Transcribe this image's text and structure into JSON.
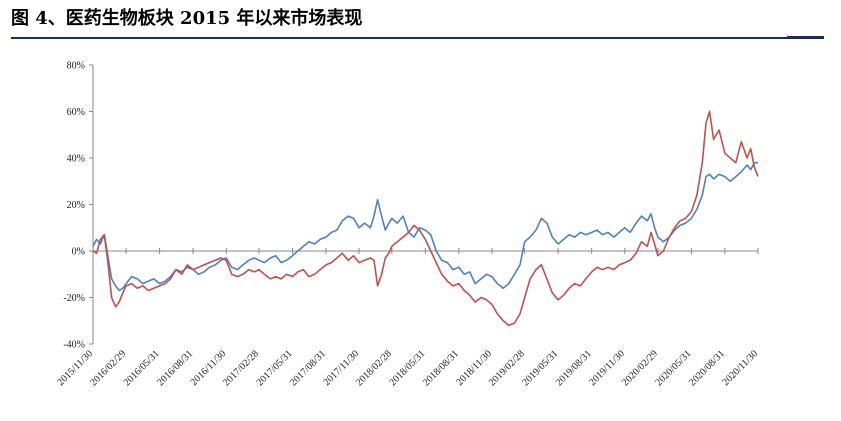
{
  "figure": {
    "title": "图 4、医药生物板块 2015 年以来市场表现"
  },
  "colors": {
    "series_blue": "#4f81bd",
    "series_red": "#c0504d",
    "axis": "#888888",
    "rule": "#1f2a60"
  },
  "chart_data": {
    "type": "line",
    "title": "",
    "xlabel": "",
    "ylabel": "",
    "ylim": [
      -40,
      80
    ],
    "y_unit": "%",
    "grid": false,
    "legend": "none",
    "y_ticks": [
      {
        "value": -40,
        "label": "-40%"
      },
      {
        "value": -20,
        "label": "-20%"
      },
      {
        "value": 0,
        "label": "0%"
      },
      {
        "value": 20,
        "label": "20%"
      },
      {
        "value": 40,
        "label": "40%"
      },
      {
        "value": 60,
        "label": "60%"
      },
      {
        "value": 80,
        "label": "80%"
      }
    ],
    "x_ticks": [
      {
        "date": "2015-11-30",
        "label": "2015/11/30"
      },
      {
        "date": "2016-02-29",
        "label": "2016/02/29"
      },
      {
        "date": "2016-05-31",
        "label": "2016/05/31"
      },
      {
        "date": "2016-08-31",
        "label": "2016/08/31"
      },
      {
        "date": "2016-11-30",
        "label": "2016/11/30"
      },
      {
        "date": "2017-02-28",
        "label": "2017/02/28"
      },
      {
        "date": "2017-05-31",
        "label": "2017/05/31"
      },
      {
        "date": "2017-08-31",
        "label": "2017/08/31"
      },
      {
        "date": "2017-11-30",
        "label": "2017/11/30"
      },
      {
        "date": "2018-02-28",
        "label": "2018/02/28"
      },
      {
        "date": "2018-05-31",
        "label": "2018/05/31"
      },
      {
        "date": "2018-08-31",
        "label": "2018/08/31"
      },
      {
        "date": "2018-11-30",
        "label": "2018/11/30"
      },
      {
        "date": "2019-02-28",
        "label": "2019/02/28"
      },
      {
        "date": "2019-05-31",
        "label": "2019/05/31"
      },
      {
        "date": "2019-08-31",
        "label": "2019/08/31"
      },
      {
        "date": "2019-11-30",
        "label": "2019/11/30"
      },
      {
        "date": "2020-02-29",
        "label": "2020/02/29"
      },
      {
        "date": "2020-05-31",
        "label": "2020/05/31"
      },
      {
        "date": "2020-08-31",
        "label": "2020/08/31"
      },
      {
        "date": "2020-11-30",
        "label": "2020/11/30"
      }
    ],
    "series": [
      {
        "color": "#4f81bd",
        "points": [
          [
            "2015-11-30",
            2
          ],
          [
            "2015-12-10",
            5
          ],
          [
            "2015-12-20",
            3
          ],
          [
            "2015-12-31",
            7
          ],
          [
            "2016-01-10",
            -2
          ],
          [
            "2016-01-20",
            -12
          ],
          [
            "2016-01-31",
            -15
          ],
          [
            "2016-02-10",
            -17
          ],
          [
            "2016-02-20",
            -16
          ],
          [
            "2016-02-29",
            -14
          ],
          [
            "2016-03-15",
            -11
          ],
          [
            "2016-03-31",
            -12
          ],
          [
            "2016-04-15",
            -14
          ],
          [
            "2016-04-30",
            -13
          ],
          [
            "2016-05-15",
            -12
          ],
          [
            "2016-05-31",
            -14
          ],
          [
            "2016-06-15",
            -13
          ],
          [
            "2016-06-30",
            -11
          ],
          [
            "2016-07-15",
            -8
          ],
          [
            "2016-07-31",
            -9
          ],
          [
            "2016-08-15",
            -7
          ],
          [
            "2016-08-31",
            -8
          ],
          [
            "2016-09-15",
            -10
          ],
          [
            "2016-09-30",
            -9
          ],
          [
            "2016-10-15",
            -7
          ],
          [
            "2016-10-31",
            -6
          ],
          [
            "2016-11-15",
            -4
          ],
          [
            "2016-11-30",
            -3
          ],
          [
            "2016-12-15",
            -7
          ],
          [
            "2016-12-31",
            -8
          ],
          [
            "2017-01-15",
            -6
          ],
          [
            "2017-01-31",
            -4
          ],
          [
            "2017-02-15",
            -3
          ],
          [
            "2017-02-28",
            -4
          ],
          [
            "2017-03-15",
            -5
          ],
          [
            "2017-03-31",
            -3
          ],
          [
            "2017-04-15",
            -2
          ],
          [
            "2017-04-30",
            -5
          ],
          [
            "2017-05-15",
            -4
          ],
          [
            "2017-05-31",
            -2
          ],
          [
            "2017-06-15",
            0
          ],
          [
            "2017-06-30",
            2
          ],
          [
            "2017-07-15",
            4
          ],
          [
            "2017-07-31",
            3
          ],
          [
            "2017-08-15",
            5
          ],
          [
            "2017-08-31",
            6
          ],
          [
            "2017-09-15",
            8
          ],
          [
            "2017-09-30",
            9
          ],
          [
            "2017-10-15",
            13
          ],
          [
            "2017-10-31",
            15
          ],
          [
            "2017-11-15",
            14
          ],
          [
            "2017-11-30",
            10
          ],
          [
            "2017-12-15",
            12
          ],
          [
            "2017-12-31",
            10
          ],
          [
            "2018-01-10",
            15
          ],
          [
            "2018-01-20",
            22
          ],
          [
            "2018-01-31",
            15
          ],
          [
            "2018-02-10",
            9
          ],
          [
            "2018-02-20",
            12
          ],
          [
            "2018-02-28",
            14
          ],
          [
            "2018-03-15",
            12
          ],
          [
            "2018-03-31",
            15
          ],
          [
            "2018-04-15",
            8
          ],
          [
            "2018-04-30",
            6
          ],
          [
            "2018-05-15",
            10
          ],
          [
            "2018-05-31",
            9
          ],
          [
            "2018-06-15",
            7
          ],
          [
            "2018-06-30",
            0
          ],
          [
            "2018-07-15",
            -4
          ],
          [
            "2018-07-31",
            -5
          ],
          [
            "2018-08-15",
            -8
          ],
          [
            "2018-08-31",
            -7
          ],
          [
            "2018-09-15",
            -10
          ],
          [
            "2018-09-30",
            -9
          ],
          [
            "2018-10-15",
            -14
          ],
          [
            "2018-10-31",
            -12
          ],
          [
            "2018-11-15",
            -10
          ],
          [
            "2018-11-30",
            -11
          ],
          [
            "2018-12-15",
            -14
          ],
          [
            "2018-12-31",
            -16
          ],
          [
            "2019-01-15",
            -14
          ],
          [
            "2019-01-31",
            -10
          ],
          [
            "2019-02-15",
            -6
          ],
          [
            "2019-02-28",
            4
          ],
          [
            "2019-03-15",
            6
          ],
          [
            "2019-03-31",
            9
          ],
          [
            "2019-04-15",
            14
          ],
          [
            "2019-04-30",
            12
          ],
          [
            "2019-05-15",
            6
          ],
          [
            "2019-05-31",
            3
          ],
          [
            "2019-06-15",
            5
          ],
          [
            "2019-06-30",
            7
          ],
          [
            "2019-07-15",
            6
          ],
          [
            "2019-07-31",
            8
          ],
          [
            "2019-08-15",
            7
          ],
          [
            "2019-08-31",
            8
          ],
          [
            "2019-09-15",
            9
          ],
          [
            "2019-09-30",
            7
          ],
          [
            "2019-10-15",
            8
          ],
          [
            "2019-10-31",
            6
          ],
          [
            "2019-11-15",
            8
          ],
          [
            "2019-11-30",
            10
          ],
          [
            "2019-12-15",
            8
          ],
          [
            "2019-12-31",
            12
          ],
          [
            "2020-01-15",
            15
          ],
          [
            "2020-01-31",
            13
          ],
          [
            "2020-02-10",
            16
          ],
          [
            "2020-02-20",
            10
          ],
          [
            "2020-02-29",
            6
          ],
          [
            "2020-03-15",
            4
          ],
          [
            "2020-03-31",
            6
          ],
          [
            "2020-04-15",
            9
          ],
          [
            "2020-04-30",
            11
          ],
          [
            "2020-05-15",
            12
          ],
          [
            "2020-05-31",
            14
          ],
          [
            "2020-06-15",
            18
          ],
          [
            "2020-06-30",
            24
          ],
          [
            "2020-07-10",
            32
          ],
          [
            "2020-07-20",
            33
          ],
          [
            "2020-07-31",
            31
          ],
          [
            "2020-08-15",
            33
          ],
          [
            "2020-08-31",
            32
          ],
          [
            "2020-09-15",
            30
          ],
          [
            "2020-09-30",
            32
          ],
          [
            "2020-10-15",
            34
          ],
          [
            "2020-10-31",
            37
          ],
          [
            "2020-11-10",
            35
          ],
          [
            "2020-11-20",
            38
          ],
          [
            "2020-11-30",
            38
          ]
        ]
      },
      {
        "color": "#c0504d",
        "points": [
          [
            "2015-11-30",
            0
          ],
          [
            "2015-12-10",
            -1
          ],
          [
            "2015-12-20",
            5
          ],
          [
            "2015-12-31",
            7
          ],
          [
            "2016-01-10",
            -5
          ],
          [
            "2016-01-20",
            -20
          ],
          [
            "2016-01-31",
            -24
          ],
          [
            "2016-02-10",
            -22
          ],
          [
            "2016-02-20",
            -18
          ],
          [
            "2016-02-29",
            -15
          ],
          [
            "2016-03-15",
            -14
          ],
          [
            "2016-03-31",
            -16
          ],
          [
            "2016-04-15",
            -15
          ],
          [
            "2016-04-30",
            -17
          ],
          [
            "2016-05-15",
            -16
          ],
          [
            "2016-05-31",
            -15
          ],
          [
            "2016-06-15",
            -14
          ],
          [
            "2016-06-30",
            -12
          ],
          [
            "2016-07-15",
            -8
          ],
          [
            "2016-07-31",
            -10
          ],
          [
            "2016-08-15",
            -6
          ],
          [
            "2016-08-31",
            -8
          ],
          [
            "2016-09-15",
            -7
          ],
          [
            "2016-09-30",
            -6
          ],
          [
            "2016-10-15",
            -5
          ],
          [
            "2016-10-31",
            -4
          ],
          [
            "2016-11-15",
            -3
          ],
          [
            "2016-11-30",
            -4
          ],
          [
            "2016-12-15",
            -10
          ],
          [
            "2016-12-31",
            -11
          ],
          [
            "2017-01-15",
            -10
          ],
          [
            "2017-01-31",
            -8
          ],
          [
            "2017-02-15",
            -9
          ],
          [
            "2017-02-28",
            -8
          ],
          [
            "2017-03-15",
            -10
          ],
          [
            "2017-03-31",
            -12
          ],
          [
            "2017-04-15",
            -11
          ],
          [
            "2017-04-30",
            -12
          ],
          [
            "2017-05-15",
            -10
          ],
          [
            "2017-05-31",
            -11
          ],
          [
            "2017-06-15",
            -9
          ],
          [
            "2017-06-30",
            -8
          ],
          [
            "2017-07-15",
            -11
          ],
          [
            "2017-07-31",
            -10
          ],
          [
            "2017-08-15",
            -8
          ],
          [
            "2017-08-31",
            -6
          ],
          [
            "2017-09-15",
            -5
          ],
          [
            "2017-09-30",
            -3
          ],
          [
            "2017-10-15",
            -1
          ],
          [
            "2017-10-31",
            -4
          ],
          [
            "2017-11-15",
            -2
          ],
          [
            "2017-11-30",
            -5
          ],
          [
            "2017-12-15",
            -4
          ],
          [
            "2017-12-31",
            -3
          ],
          [
            "2018-01-10",
            -4
          ],
          [
            "2018-01-20",
            -15
          ],
          [
            "2018-01-31",
            -10
          ],
          [
            "2018-02-10",
            -3
          ],
          [
            "2018-02-20",
            -1
          ],
          [
            "2018-02-28",
            2
          ],
          [
            "2018-03-15",
            4
          ],
          [
            "2018-03-31",
            6
          ],
          [
            "2018-04-15",
            8
          ],
          [
            "2018-04-30",
            11
          ],
          [
            "2018-05-15",
            9
          ],
          [
            "2018-05-31",
            5
          ],
          [
            "2018-06-15",
            0
          ],
          [
            "2018-06-30",
            -5
          ],
          [
            "2018-07-15",
            -10
          ],
          [
            "2018-07-31",
            -13
          ],
          [
            "2018-08-15",
            -15
          ],
          [
            "2018-08-31",
            -14
          ],
          [
            "2018-09-15",
            -17
          ],
          [
            "2018-09-30",
            -19
          ],
          [
            "2018-10-15",
            -22
          ],
          [
            "2018-10-31",
            -20
          ],
          [
            "2018-11-15",
            -21
          ],
          [
            "2018-11-30",
            -23
          ],
          [
            "2018-12-15",
            -27
          ],
          [
            "2018-12-31",
            -30
          ],
          [
            "2019-01-15",
            -32
          ],
          [
            "2019-01-31",
            -31
          ],
          [
            "2019-02-15",
            -27
          ],
          [
            "2019-02-28",
            -20
          ],
          [
            "2019-03-15",
            -12
          ],
          [
            "2019-03-31",
            -8
          ],
          [
            "2019-04-15",
            -6
          ],
          [
            "2019-04-30",
            -12
          ],
          [
            "2019-05-15",
            -18
          ],
          [
            "2019-05-31",
            -21
          ],
          [
            "2019-06-15",
            -19
          ],
          [
            "2019-06-30",
            -16
          ],
          [
            "2019-07-15",
            -14
          ],
          [
            "2019-07-31",
            -15
          ],
          [
            "2019-08-15",
            -12
          ],
          [
            "2019-08-31",
            -9
          ],
          [
            "2019-09-15",
            -7
          ],
          [
            "2019-09-30",
            -8
          ],
          [
            "2019-10-15",
            -7
          ],
          [
            "2019-10-31",
            -8
          ],
          [
            "2019-11-15",
            -6
          ],
          [
            "2019-11-30",
            -5
          ],
          [
            "2019-12-15",
            -4
          ],
          [
            "2019-12-31",
            -1
          ],
          [
            "2020-01-15",
            4
          ],
          [
            "2020-01-31",
            2
          ],
          [
            "2020-02-10",
            8
          ],
          [
            "2020-02-20",
            3
          ],
          [
            "2020-02-29",
            -2
          ],
          [
            "2020-03-15",
            0
          ],
          [
            "2020-03-31",
            6
          ],
          [
            "2020-04-15",
            10
          ],
          [
            "2020-04-30",
            13
          ],
          [
            "2020-05-15",
            14
          ],
          [
            "2020-05-31",
            17
          ],
          [
            "2020-06-15",
            24
          ],
          [
            "2020-06-30",
            38
          ],
          [
            "2020-07-10",
            55
          ],
          [
            "2020-07-20",
            60
          ],
          [
            "2020-07-31",
            48
          ],
          [
            "2020-08-15",
            52
          ],
          [
            "2020-08-31",
            42
          ],
          [
            "2020-09-15",
            40
          ],
          [
            "2020-09-30",
            38
          ],
          [
            "2020-10-15",
            47
          ],
          [
            "2020-10-31",
            40
          ],
          [
            "2020-11-10",
            44
          ],
          [
            "2020-11-20",
            36
          ],
          [
            "2020-11-30",
            32
          ]
        ]
      }
    ]
  }
}
